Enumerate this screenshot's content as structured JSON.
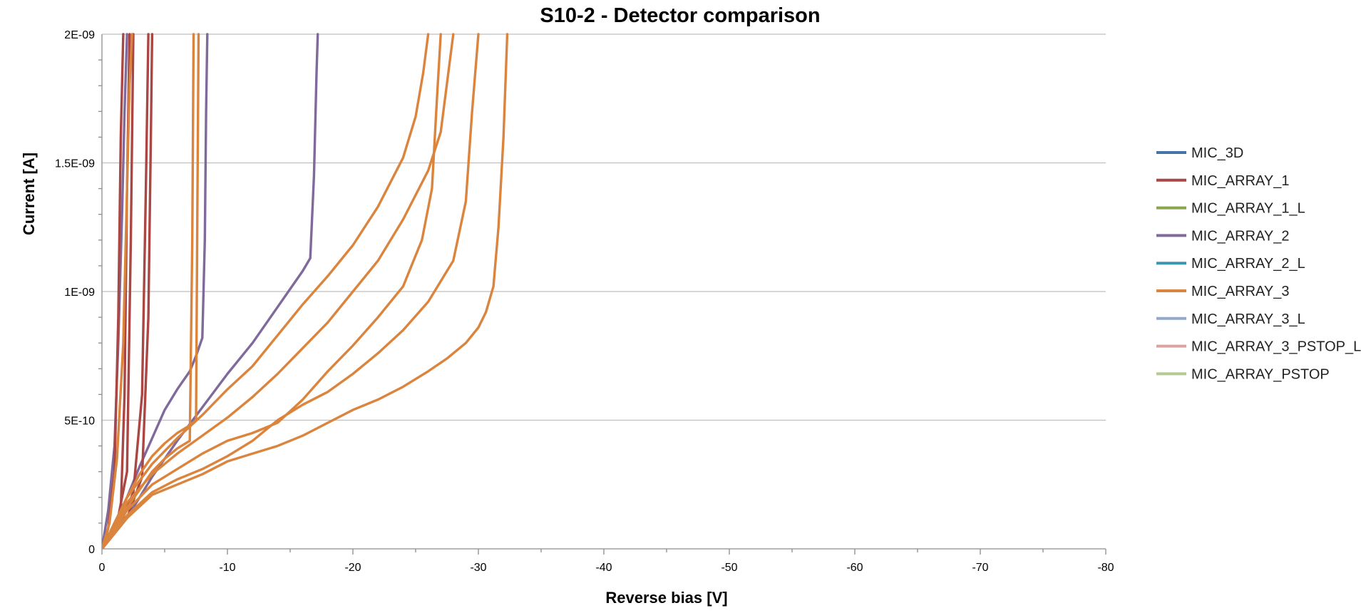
{
  "chart_data": {
    "type": "line",
    "title": "S10-2 - Detector comparison",
    "xlabel": "Reverse bias [V]",
    "ylabel": "Current [A]",
    "xlim": [
      0,
      -80
    ],
    "ylim": [
      0,
      2e-09
    ],
    "x_ticks": [
      {
        "value": 0,
        "label": "0"
      },
      {
        "value": -10,
        "label": "-10"
      },
      {
        "value": -20,
        "label": "-20"
      },
      {
        "value": -30,
        "label": "-30"
      },
      {
        "value": -40,
        "label": "-40"
      },
      {
        "value": -50,
        "label": "-50"
      },
      {
        "value": -60,
        "label": "-60"
      },
      {
        "value": -70,
        "label": "-70"
      },
      {
        "value": -80,
        "label": "-80"
      }
    ],
    "y_ticks": [
      {
        "value": 0,
        "label": "0"
      },
      {
        "value": 5e-10,
        "label": "5E-10"
      },
      {
        "value": 1e-09,
        "label": "1E-09"
      },
      {
        "value": 1.5e-09,
        "label": "1.5E-09"
      },
      {
        "value": 2e-09,
        "label": "2E-09"
      }
    ],
    "grid": "horizontal",
    "legend_position": "right",
    "legend": [
      {
        "name": "MIC_3D",
        "color": "#4572a7"
      },
      {
        "name": "MIC_ARRAY_1",
        "color": "#aa4643"
      },
      {
        "name": "MIC_ARRAY_1_L",
        "color": "#89a54e"
      },
      {
        "name": "MIC_ARRAY_2",
        "color": "#80699b"
      },
      {
        "name": "MIC_ARRAY_2_L",
        "color": "#3d96ae"
      },
      {
        "name": "MIC_ARRAY_3",
        "color": "#db843d"
      },
      {
        "name": "MIC_ARRAY_3_L",
        "color": "#92a8cd"
      },
      {
        "name": "MIC_ARRAY_3_PSTOP_L",
        "color": "#d9a3a0"
      },
      {
        "name": "MIC_ARRAY_PSTOP",
        "color": "#b5ca92"
      }
    ],
    "curves": [
      {
        "series": "MIC_ARRAY_2",
        "color": "#80699b",
        "x": [
          0,
          -0.5,
          -1,
          -1.3,
          -1.6,
          -1.8,
          -2.0
        ],
        "y": [
          0,
          1.5e-10,
          4e-10,
          8e-10,
          1.3e-09,
          1.7e-09,
          2e-09
        ]
      },
      {
        "series": "MIC_ARRAY_2",
        "color": "#80699b",
        "x": [
          0,
          -1,
          -2,
          -3,
          -4,
          -5,
          -6,
          -7,
          -7.5,
          -8,
          -8.2,
          -8.3,
          -8.4
        ],
        "y": [
          0,
          1e-10,
          2e-10,
          3.2e-10,
          4.3e-10,
          5.4e-10,
          6.2e-10,
          6.9e-10,
          7.5e-10,
          8.2e-10,
          1.2e-09,
          1.7e-09,
          2e-09
        ]
      },
      {
        "series": "MIC_ARRAY_2",
        "color": "#80699b",
        "x": [
          0,
          -2,
          -4,
          -6,
          -8,
          -10,
          -12,
          -14,
          -16,
          -16.6,
          -16.9,
          -17.1,
          -17.2
        ],
        "y": [
          0,
          1.2e-10,
          2.8e-10,
          4.2e-10,
          5.5e-10,
          6.8e-10,
          8e-10,
          9.4e-10,
          1.08e-09,
          1.13e-09,
          1.45e-09,
          1.85e-09,
          2e-09
        ]
      },
      {
        "series": "MIC_ARRAY_1",
        "color": "#aa4643",
        "x": [
          0,
          -0.5,
          -1.0,
          -1.3,
          -1.5,
          -1.7
        ],
        "y": [
          0,
          8e-11,
          3e-10,
          9e-10,
          1.6e-09,
          2e-09
        ]
      },
      {
        "series": "MIC_ARRAY_1",
        "color": "#aa4643",
        "x": [
          0,
          -0.8,
          -1.5,
          -1.8,
          -2.0,
          -2.2
        ],
        "y": [
          0,
          5e-11,
          1.5e-10,
          6e-10,
          1.4e-09,
          2e-09
        ]
      },
      {
        "series": "MIC_ARRAY_1",
        "color": "#aa4643",
        "x": [
          0,
          -1.2,
          -2.0,
          -2.3,
          -2.5
        ],
        "y": [
          0,
          1e-10,
          3e-10,
          1.2e-09,
          2e-09
        ]
      },
      {
        "series": "MIC_ARRAY_1",
        "color": "#aa4643",
        "x": [
          0,
          -1.5,
          -2.5,
          -3.2,
          -3.5,
          -3.7
        ],
        "y": [
          0,
          1e-10,
          2.2e-10,
          6e-10,
          1.4e-09,
          2e-09
        ]
      },
      {
        "series": "MIC_ARRAY_1",
        "color": "#aa4643",
        "x": [
          0,
          -2,
          -3.2,
          -3.7,
          -3.9,
          -4.0
        ],
        "y": [
          0,
          1.2e-10,
          2.8e-10,
          9e-10,
          1.6e-09,
          2e-09
        ]
      },
      {
        "series": "MIC_ARRAY_3",
        "color": "#db843d",
        "x": [
          0,
          -0.6,
          -1.2,
          -1.7,
          -2.0,
          -2.2,
          -2.4
        ],
        "y": [
          0,
          1e-10,
          3.5e-10,
          8e-10,
          1.4e-09,
          1.8e-09,
          2e-09
        ]
      },
      {
        "series": "MIC_ARRAY_3",
        "color": "#db843d",
        "x": [
          0,
          -1,
          -2,
          -3,
          -4,
          -5,
          -6,
          -7,
          -7.2,
          -7.3
        ],
        "y": [
          0,
          8e-11,
          1.6e-10,
          2.3e-10,
          3e-10,
          3.5e-10,
          3.9e-10,
          4.2e-10,
          1.2e-09,
          2e-09
        ]
      },
      {
        "series": "MIC_ARRAY_3",
        "color": "#db843d",
        "x": [
          0,
          -1,
          -2,
          -3,
          -4,
          -5,
          -6,
          -7,
          -7.5,
          -7.6,
          -7.7
        ],
        "y": [
          0,
          1e-10,
          2e-10,
          2.9e-10,
          3.6e-10,
          4.1e-10,
          4.5e-10,
          4.8e-10,
          5e-10,
          1.3e-09,
          2e-09
        ]
      },
      {
        "series": "MIC_ARRAY_3",
        "color": "#db843d",
        "x": [
          0,
          -2,
          -4,
          -6,
          -8,
          -10,
          -12,
          -14,
          -16,
          -18,
          -20,
          -22,
          -24,
          -26,
          -27,
          -28
        ],
        "y": [
          0,
          1.8e-10,
          2.9e-10,
          3.7e-10,
          4.4e-10,
          5.1e-10,
          5.9e-10,
          6.8e-10,
          7.8e-10,
          8.8e-10,
          1e-09,
          1.12e-09,
          1.28e-09,
          1.47e-09,
          1.62e-09,
          2e-09
        ]
      },
      {
        "series": "MIC_ARRAY_3",
        "color": "#db843d",
        "x": [
          0,
          -2,
          -4,
          -6,
          -8,
          -10,
          -12,
          -14,
          -16,
          -18,
          -20,
          -22,
          -24,
          -25,
          -25.6,
          -26.0
        ],
        "y": [
          0,
          2e-10,
          3.3e-10,
          4.3e-10,
          5.2e-10,
          6.2e-10,
          7.1e-10,
          8.3e-10,
          9.5e-10,
          1.06e-09,
          1.18e-09,
          1.33e-09,
          1.52e-09,
          1.68e-09,
          1.85e-09,
          2e-09
        ]
      },
      {
        "series": "MIC_ARRAY_3",
        "color": "#db843d",
        "x": [
          0,
          -2,
          -4,
          -6,
          -8,
          -10,
          -12,
          -14,
          -16,
          -18,
          -20,
          -22,
          -24,
          -25.5,
          -26.3,
          -26.7,
          -27.0
        ],
        "y": [
          0,
          1.5e-10,
          2.5e-10,
          3.1e-10,
          3.7e-10,
          4.2e-10,
          4.5e-10,
          4.9e-10,
          5.8e-10,
          6.9e-10,
          7.9e-10,
          9e-10,
          1.02e-09,
          1.2e-09,
          1.4e-09,
          1.75e-09,
          2e-09
        ]
      },
      {
        "series": "MIC_ARRAY_3",
        "color": "#db843d",
        "x": [
          0,
          -2,
          -4,
          -6,
          -8,
          -10,
          -12,
          -14,
          -16,
          -18,
          -20,
          -22,
          -24,
          -26,
          -28,
          -29,
          -29.5,
          -30.0
        ],
        "y": [
          0,
          1.3e-10,
          2.2e-10,
          2.7e-10,
          3.1e-10,
          3.6e-10,
          4.2e-10,
          5e-10,
          5.6e-10,
          6.1e-10,
          6.8e-10,
          7.6e-10,
          8.5e-10,
          9.6e-10,
          1.12e-09,
          1.35e-09,
          1.7e-09,
          2e-09
        ]
      },
      {
        "series": "MIC_ARRAY_3",
        "color": "#db843d",
        "x": [
          0,
          -2,
          -4,
          -6,
          -8,
          -10,
          -12,
          -14,
          -16,
          -18,
          -20,
          -22,
          -24,
          -26,
          -27.5,
          -29,
          -30,
          -30.6,
          -31.2,
          -31.6,
          -32.0,
          -32.3
        ],
        "y": [
          0,
          1.2e-10,
          2.1e-10,
          2.5e-10,
          2.9e-10,
          3.4e-10,
          3.7e-10,
          4e-10,
          4.4e-10,
          4.9e-10,
          5.4e-10,
          5.8e-10,
          6.3e-10,
          6.9e-10,
          7.4e-10,
          8e-10,
          8.6e-10,
          9.2e-10,
          1.02e-09,
          1.25e-09,
          1.6e-09,
          2e-09
        ]
      }
    ]
  }
}
